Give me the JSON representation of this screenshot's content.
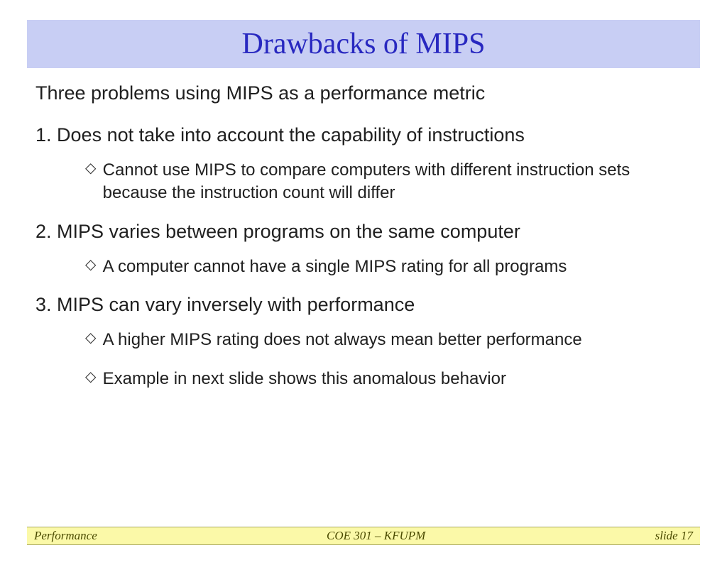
{
  "title": "Drawbacks of MIPS",
  "intro": "Three problems using MIPS as a performance metric",
  "points": [
    {
      "num": "1.",
      "text": "Does not take into account the capability of instructions",
      "subs": [
        "Cannot use MIPS to compare computers with different instruction sets because the instruction count will differ"
      ]
    },
    {
      "num": "2.",
      "text": "MIPS varies between programs on the same computer",
      "subs": [
        "A computer cannot have a single MIPS rating for all programs"
      ]
    },
    {
      "num": "3.",
      "text": "MIPS can vary inversely with performance",
      "subs": [
        "A higher MIPS rating does not always mean better performance",
        "Example in next slide shows this anomalous behavior"
      ]
    }
  ],
  "footer": {
    "left": "Performance",
    "center": "COE 301 – KFUPM",
    "right": "slide 17"
  },
  "colors": {
    "title_bg": "#c8cef4",
    "title_text": "#2828c0",
    "body_text": "#202020",
    "footer_bg": "#fbf9a8",
    "footer_text": "#4b4b00",
    "page_bg": "#ffffff"
  },
  "typography": {
    "title_font": "Comic Sans MS",
    "title_size_pt": 42,
    "body_font": "Arial",
    "main_size_pt": 27,
    "sub_size_pt": 24,
    "footer_font": "Times New Roman italic",
    "footer_size_pt": 17
  },
  "bullet_glyph": "◇"
}
